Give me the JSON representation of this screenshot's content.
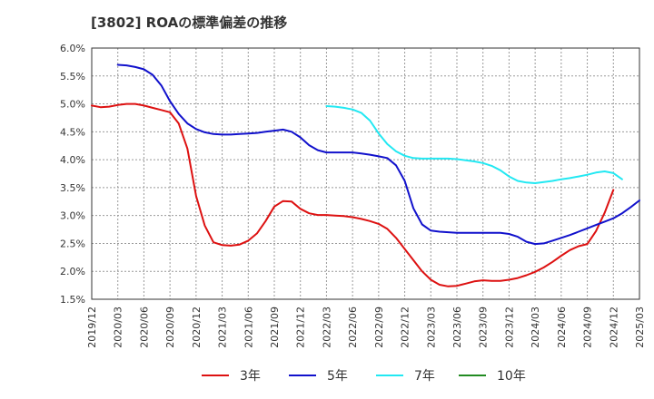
{
  "chart_data": {
    "type": "line",
    "title": "[3802]  ROAの標準偏差の推移",
    "xlabel": "",
    "ylabel": "",
    "ylim": [
      1.5,
      6.0
    ],
    "y_ticks": [
      "1.5%",
      "2.0%",
      "2.5%",
      "3.0%",
      "3.5%",
      "4.0%",
      "4.5%",
      "5.0%",
      "5.5%",
      "6.0%"
    ],
    "x_ticks": [
      "2019/12",
      "2020/03",
      "2020/06",
      "2020/09",
      "2020/12",
      "2021/03",
      "2021/06",
      "2021/09",
      "2021/12",
      "2022/03",
      "2022/06",
      "2022/09",
      "2022/12",
      "2023/03",
      "2023/06",
      "2023/09",
      "2023/12",
      "2024/03",
      "2024/06",
      "2024/09",
      "2024/12",
      "2025/03"
    ],
    "x_start": "2019/12",
    "grid": true,
    "legend_position": "bottom",
    "series": [
      {
        "name": "3年",
        "color": "#dd1111",
        "start": "2019/12",
        "values": [
          4.97,
          4.94,
          4.95,
          4.98,
          5.0,
          5.0,
          4.97,
          4.93,
          4.89,
          4.85,
          4.65,
          4.2,
          3.35,
          2.82,
          2.52,
          2.47,
          2.46,
          2.48,
          2.55,
          2.68,
          2.9,
          3.16,
          3.26,
          3.25,
          3.12,
          3.04,
          3.01,
          3.01,
          3.0,
          2.99,
          2.97,
          2.94,
          2.9,
          2.85,
          2.76,
          2.6,
          2.4,
          2.2,
          2.0,
          1.85,
          1.76,
          1.73,
          1.74,
          1.78,
          1.82,
          1.84,
          1.83,
          1.83,
          1.85,
          1.88,
          1.93,
          1.99,
          2.07,
          2.17,
          2.28,
          2.38,
          2.45,
          2.49,
          2.72,
          3.05,
          3.46
        ]
      },
      {
        "name": "5年",
        "color": "#1111cc",
        "start": "2020/03",
        "values": [
          5.7,
          5.69,
          5.66,
          5.62,
          5.52,
          5.33,
          5.05,
          4.82,
          4.65,
          4.55,
          4.49,
          4.46,
          4.45,
          4.45,
          4.46,
          4.47,
          4.48,
          4.5,
          4.52,
          4.54,
          4.5,
          4.4,
          4.26,
          4.17,
          4.13,
          4.13,
          4.13,
          4.13,
          4.11,
          4.09,
          4.06,
          4.03,
          3.9,
          3.62,
          3.13,
          2.84,
          2.73,
          2.71,
          2.7,
          2.69,
          2.69,
          2.69,
          2.69,
          2.69,
          2.69,
          2.67,
          2.62,
          2.53,
          2.49,
          2.5,
          2.55,
          2.6,
          2.65,
          2.71,
          2.77,
          2.83,
          2.89,
          2.95,
          3.04,
          3.15,
          3.27
        ]
      },
      {
        "name": "7年",
        "color": "#22e8f2",
        "start": "2022/03",
        "values": [
          4.96,
          4.95,
          4.93,
          4.9,
          4.84,
          4.7,
          4.47,
          4.28,
          4.15,
          4.07,
          4.03,
          4.02,
          4.02,
          4.02,
          4.02,
          4.01,
          3.99,
          3.97,
          3.94,
          3.89,
          3.81,
          3.7,
          3.62,
          3.59,
          3.58,
          3.6,
          3.62,
          3.65,
          3.67,
          3.7,
          3.73,
          3.77,
          3.79,
          3.76,
          3.65
        ]
      },
      {
        "name": "10年",
        "color": "#228b22",
        "start": "2025/03",
        "values": []
      }
    ]
  }
}
